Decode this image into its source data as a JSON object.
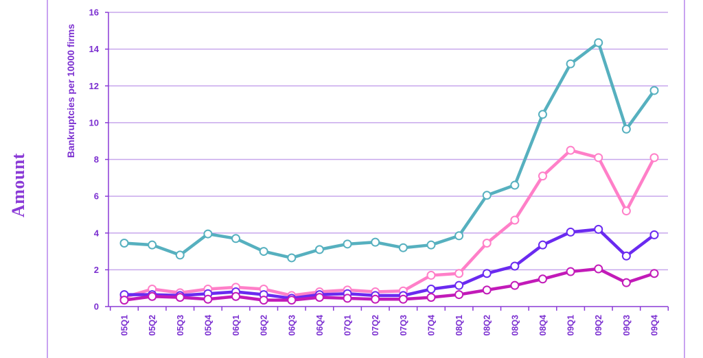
{
  "outer_label": "Amount",
  "chart_data": {
    "type": "line",
    "title": "",
    "ylabel": "Bankruptcies per 10000 firms",
    "xlabel": "",
    "ylim": [
      0,
      16
    ],
    "yticks": [
      0,
      2,
      4,
      6,
      8,
      10,
      12,
      14,
      16
    ],
    "grid": true,
    "legend_position": "bottom",
    "categories": [
      "05Q1",
      "05Q2",
      "05Q3",
      "05Q4",
      "06Q1",
      "06Q2",
      "06Q3",
      "06Q4",
      "07Q1",
      "07Q2",
      "07Q3",
      "07Q4",
      "08Q1",
      "08Q2",
      "08Q3",
      "08Q4",
      "09Q1",
      "09Q2",
      "09Q3",
      "09Q4"
    ],
    "series": [
      {
        "color": "#56b0bf",
        "values": [
          3.45,
          3.35,
          2.8,
          3.95,
          3.7,
          3.0,
          2.65,
          3.1,
          3.4,
          3.5,
          3.2,
          3.35,
          3.85,
          6.05,
          6.6,
          10.45,
          13.2,
          14.35,
          9.65,
          11.75
        ]
      },
      {
        "color": "#ff7fc8",
        "values": [
          0.5,
          0.95,
          0.75,
          0.95,
          1.05,
          0.95,
          0.6,
          0.8,
          0.9,
          0.8,
          0.85,
          1.7,
          1.8,
          3.45,
          4.7,
          7.1,
          8.5,
          8.1,
          5.2,
          8.1
        ]
      },
      {
        "color": "#6a2af0",
        "values": [
          0.65,
          0.65,
          0.6,
          0.7,
          0.8,
          0.65,
          0.45,
          0.65,
          0.7,
          0.6,
          0.6,
          0.95,
          1.15,
          1.8,
          2.2,
          3.35,
          4.05,
          4.2,
          2.75,
          3.9
        ]
      },
      {
        "color": "#c21ab8",
        "values": [
          0.35,
          0.55,
          0.5,
          0.4,
          0.55,
          0.35,
          0.35,
          0.5,
          0.45,
          0.4,
          0.4,
          0.5,
          0.65,
          0.9,
          1.15,
          1.5,
          1.9,
          2.05,
          1.3,
          1.8
        ]
      }
    ]
  },
  "style": {
    "grid_color": "#c7a6ec",
    "axis_color": "#8a3ad6",
    "tick_color": "#7b2fd0",
    "marker_fill": "#ffffff"
  }
}
